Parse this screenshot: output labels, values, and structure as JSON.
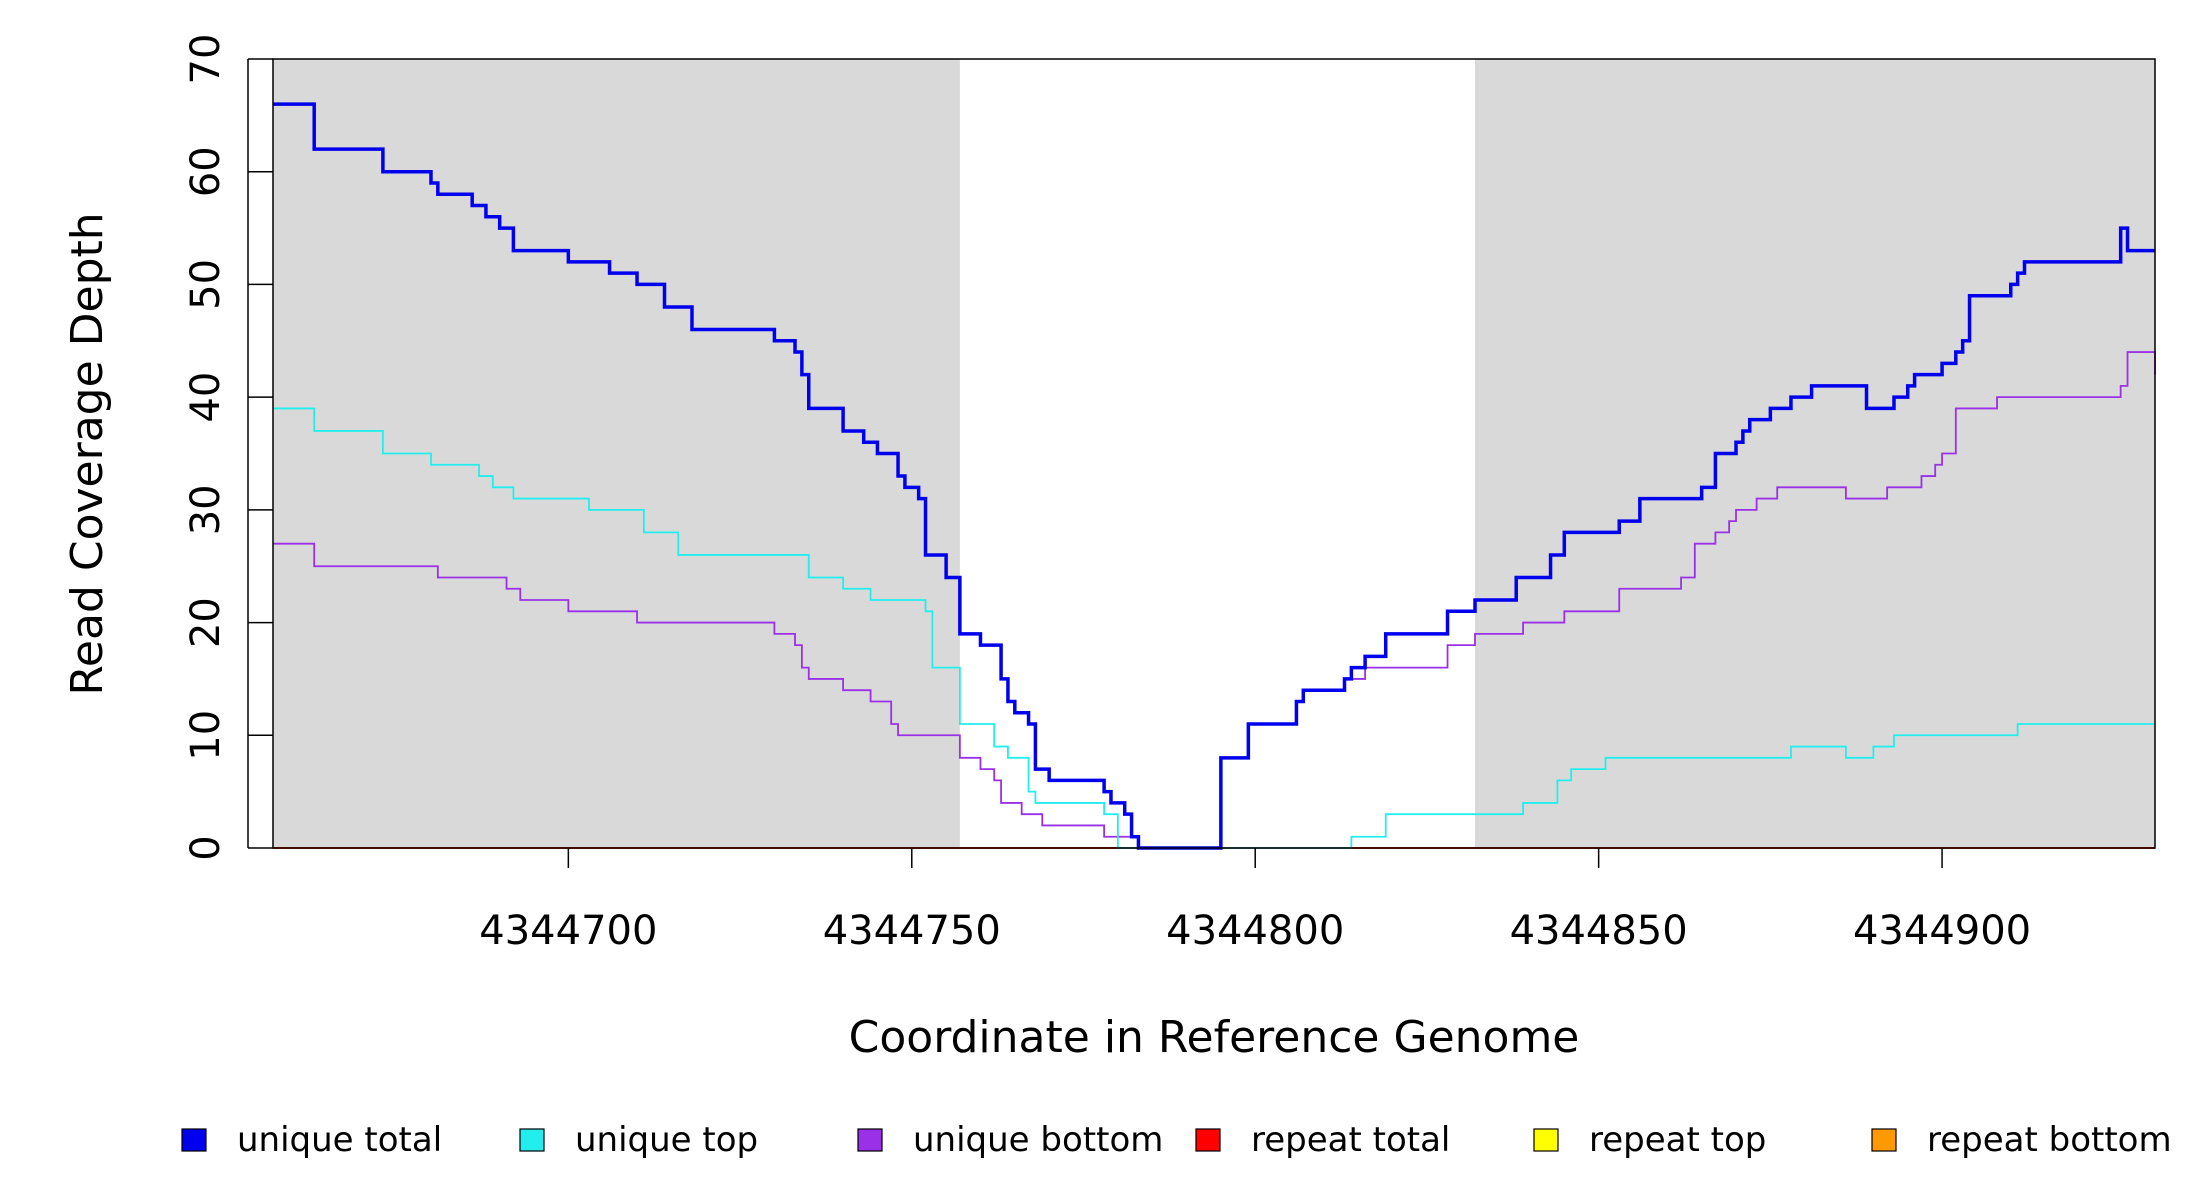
{
  "chart_data": {
    "type": "line",
    "xlabel": "Coordinate in Reference Genome",
    "ylabel": "Read Coverage Depth",
    "xlim": [
      4344657,
      4344931
    ],
    "ylim": [
      0,
      70
    ],
    "x_ticks": [
      4344700,
      4344750,
      4344800,
      4344850,
      4344900
    ],
    "x_tick_labels": [
      "4344700",
      "4344750",
      "4344800",
      "4344850",
      "4344900"
    ],
    "y_ticks": [
      0,
      10,
      20,
      30,
      40,
      50,
      60,
      70
    ],
    "y_tick_labels": [
      "0",
      "10",
      "20",
      "30",
      "40",
      "50",
      "60",
      "70"
    ],
    "grid": false,
    "legend_position": "bottom",
    "shaded_regions": [
      [
        4344657,
        4344757
      ],
      [
        4344832,
        4344931
      ]
    ],
    "shade_color": "#d9d9d9",
    "series": [
      {
        "name": "unique total",
        "color": "#0000ee",
        "step": true,
        "thick": true,
        "x": [
          4344657,
          4344663,
          4344673,
          4344680,
          4344681,
          4344686,
          4344688,
          4344690,
          4344692,
          4344700,
          4344706,
          4344710,
          4344714,
          4344718,
          4344730,
          4344733,
          4344734,
          4344735,
          4344740,
          4344743,
          4344745,
          4344748,
          4344749,
          4344751,
          4344752,
          4344755,
          4344757,
          4344760,
          4344763,
          4344764,
          4344765,
          4344767,
          4344768,
          4344770,
          4344778,
          4344779,
          4344781,
          4344782,
          4344783,
          4344786,
          4344795,
          4344799,
          4344806,
          4344807,
          4344813,
          4344814,
          4344816,
          4344819,
          4344828,
          4344832,
          4344838,
          4344843,
          4344845,
          4344853,
          4344856,
          4344865,
          4344867,
          4344870,
          4344871,
          4344872,
          4344875,
          4344878,
          4344881,
          4344889,
          4344893,
          4344895,
          4344896,
          4344900,
          4344902,
          4344903,
          4344904,
          4344910,
          4344911,
          4344912,
          4344926,
          4344927,
          4344931
        ],
        "values": [
          66,
          62,
          60,
          59,
          58,
          57,
          56,
          55,
          53,
          52,
          51,
          50,
          48,
          46,
          45,
          44,
          42,
          39,
          37,
          36,
          35,
          33,
          32,
          31,
          26,
          24,
          19,
          18,
          15,
          13,
          12,
          11,
          7,
          6,
          5,
          4,
          3,
          1,
          0,
          0,
          8,
          11,
          13,
          14,
          15,
          16,
          17,
          19,
          21,
          22,
          24,
          26,
          28,
          29,
          31,
          32,
          35,
          36,
          37,
          38,
          39,
          40,
          41,
          39,
          40,
          41,
          42,
          43,
          44,
          45,
          49,
          50,
          51,
          52,
          55,
          53,
          53
        ]
      },
      {
        "name": "unique top",
        "color": "#22eeee",
        "step": true,
        "thick": false,
        "x": [
          4344657,
          4344663,
          4344673,
          4344680,
          4344687,
          4344689,
          4344692,
          4344703,
          4344711,
          4344716,
          4344735,
          4344740,
          4344744,
          4344752,
          4344753,
          4344757,
          4344762,
          4344764,
          4344767,
          4344768,
          4344770,
          4344778,
          4344780,
          4344791,
          4344814,
          4344819,
          4344833,
          4344839,
          4344844,
          4344846,
          4344851,
          4344878,
          4344886,
          4344890,
          4344893,
          4344911,
          4344931
        ],
        "values": [
          39,
          37,
          35,
          34,
          33,
          32,
          31,
          30,
          28,
          26,
          24,
          23,
          22,
          21,
          16,
          11,
          9,
          8,
          5,
          4,
          4,
          3,
          0,
          0,
          1,
          3,
          3,
          4,
          6,
          7,
          8,
          9,
          8,
          9,
          10,
          11,
          11
        ]
      },
      {
        "name": "unique bottom",
        "color": "#9a30e8",
        "step": true,
        "thick": false,
        "x": [
          4344657,
          4344663,
          4344681,
          4344691,
          4344693,
          4344700,
          4344710,
          4344730,
          4344733,
          4344734,
          4344735,
          4344740,
          4344744,
          4344747,
          4344748,
          4344757,
          4344760,
          4344762,
          4344763,
          4344766,
          4344769,
          4344778,
          4344783,
          4344795,
          4344799,
          4344806,
          4344807,
          4344813,
          4344814,
          4344816,
          4344828,
          4344832,
          4344839,
          4344845,
          4344853,
          4344862,
          4344864,
          4344867,
          4344869,
          4344870,
          4344871,
          4344873,
          4344876,
          4344886,
          4344892,
          4344897,
          4344899,
          4344900,
          4344902,
          4344908,
          4344926,
          4344927,
          4344931
        ],
        "values": [
          27,
          25,
          24,
          23,
          22,
          21,
          20,
          19,
          18,
          16,
          15,
          14,
          13,
          11,
          10,
          8,
          7,
          6,
          4,
          3,
          2,
          1,
          0,
          8,
          11,
          13,
          14,
          15,
          15,
          16,
          18,
          19,
          20,
          21,
          23,
          24,
          27,
          28,
          29,
          30,
          30,
          31,
          32,
          31,
          32,
          33,
          34,
          35,
          39,
          40,
          41,
          44,
          42
        ]
      },
      {
        "name": "repeat total",
        "color": "#ff0000",
        "step": true,
        "thick": false,
        "x": [
          4344657,
          4344931
        ],
        "values": [
          0,
          0
        ]
      },
      {
        "name": "repeat top",
        "color": "#ffff00",
        "step": true,
        "thick": false,
        "x": [
          4344657,
          4344931
        ],
        "values": [
          0,
          0
        ]
      },
      {
        "name": "repeat bottom",
        "color": "#ff9900",
        "step": true,
        "thick": false,
        "x": [
          4344657,
          4344931
        ],
        "values": [
          0,
          0
        ]
      }
    ]
  }
}
